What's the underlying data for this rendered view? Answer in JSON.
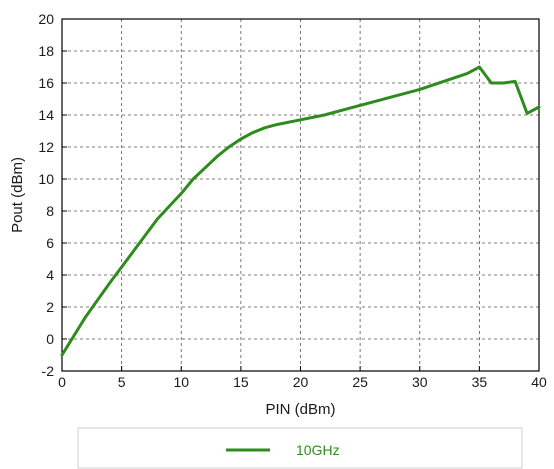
{
  "chart_data": {
    "type": "line",
    "xlabel": "PIN (dBm)",
    "ylabel": "Pout (dBm)",
    "xlim": [
      0,
      40
    ],
    "ylim": [
      -2,
      20
    ],
    "xticks": [
      0,
      5,
      10,
      15,
      20,
      25,
      30,
      35,
      40
    ],
    "xtick_labels": [
      "0",
      "5",
      "10",
      "15",
      "20",
      "25",
      "30",
      "35",
      "40"
    ],
    "yticks": [
      -2,
      0,
      2,
      4,
      6,
      8,
      10,
      12,
      14,
      16,
      18,
      20
    ],
    "ytick_labels": [
      "-2",
      "0",
      "2",
      "4",
      "6",
      "8",
      "10",
      "12",
      "14",
      "16",
      "18",
      "20"
    ],
    "grid": true,
    "legend_position": "bottom",
    "series": [
      {
        "name": "10GHz",
        "color": "#2e8b1e",
        "x": [
          0,
          2,
          4,
          6,
          8,
          10,
          11,
          12,
          13,
          14,
          15,
          16,
          17,
          18,
          20,
          22,
          24,
          26,
          28,
          30,
          32,
          34,
          35,
          36,
          37,
          38,
          39,
          40
        ],
        "y": [
          -1.0,
          1.4,
          3.5,
          5.5,
          7.5,
          9.1,
          10.0,
          10.7,
          11.4,
          12.0,
          12.5,
          12.9,
          13.2,
          13.4,
          13.7,
          14.0,
          14.4,
          14.8,
          15.2,
          15.6,
          16.1,
          16.6,
          17.0,
          16.0,
          16.0,
          16.1,
          14.1,
          14.5
        ]
      }
    ]
  }
}
